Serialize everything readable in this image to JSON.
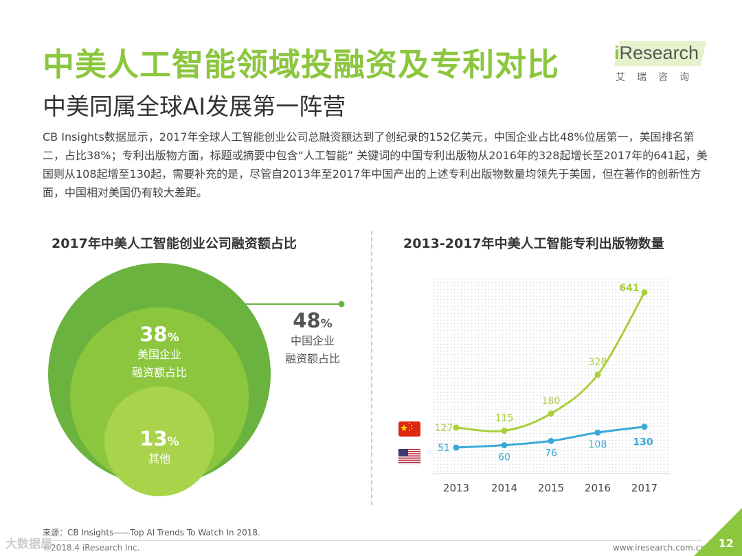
{
  "header": {
    "title": "中美人工智能领域投融资及专利对比",
    "subtitle": "中美同属全球AI发展第一阵营"
  },
  "logo": {
    "i": "i",
    "word": "Research",
    "cn": "艾瑞咨询"
  },
  "description": "CB Insights数据显示，2017年全球人工智能创业公司总融资额达到了创纪录的152亿美元，中国企业占比48%位居第一，美国排名第二，占比38%；专利出版物方面，标题或摘要中包含“人工智能” 关键词的中国专利出版物从2016年的328起增长至2017年的641起，美国则从108起增至130起，需要补充的是，尽管自2013年至2017年中国产出的上述专利出版物数量均领先于美国，但在著作的创新性方面，中国相对美国仍有较大差距。",
  "footer": {
    "source": "来源：CB Insights——Top AI Trends To Watch In 2018.",
    "copyright": "©2018.4 iResearch Inc.",
    "website": "www.iresearch.com.cn",
    "page": "12",
    "watermark": "大数据局"
  },
  "chart_data": [
    {
      "type": "pie",
      "title": "2017年中美人工智能创业公司融资额占比",
      "slices": [
        {
          "name": "中国企业融资额占比",
          "value": 48,
          "pct": "48",
          "sign": "%",
          "label_line1": "中国企业",
          "label_line2": "融资额占比",
          "color": "#6ab33e"
        },
        {
          "name": "美国企业融资额占比",
          "value": 38,
          "pct": "38",
          "sign": "%",
          "label_line1": "美国企业",
          "label_line2": "融资额占比",
          "color": "#8cc63f"
        },
        {
          "name": "其他",
          "value": 13,
          "pct": "13",
          "sign": "%",
          "label_line1": "其他",
          "label_line2": "",
          "color": "#a9d34a"
        }
      ]
    },
    {
      "type": "line",
      "title": "2013-2017年中美人工智能专利出版物数量",
      "categories": [
        "2013",
        "2014",
        "2015",
        "2016",
        "2017"
      ],
      "ylim": [
        0,
        700
      ],
      "grid": "dotted background",
      "series": [
        {
          "name": "",
          "flag": "china-flag-icon",
          "color": "#a9cf3b",
          "values": [
            127,
            115,
            180,
            328,
            641
          ]
        },
        {
          "name": "",
          "flag": "usa-flag-icon",
          "color": "#3aa8d8",
          "values": [
            51,
            60,
            76,
            108,
            130
          ]
        }
      ]
    }
  ]
}
